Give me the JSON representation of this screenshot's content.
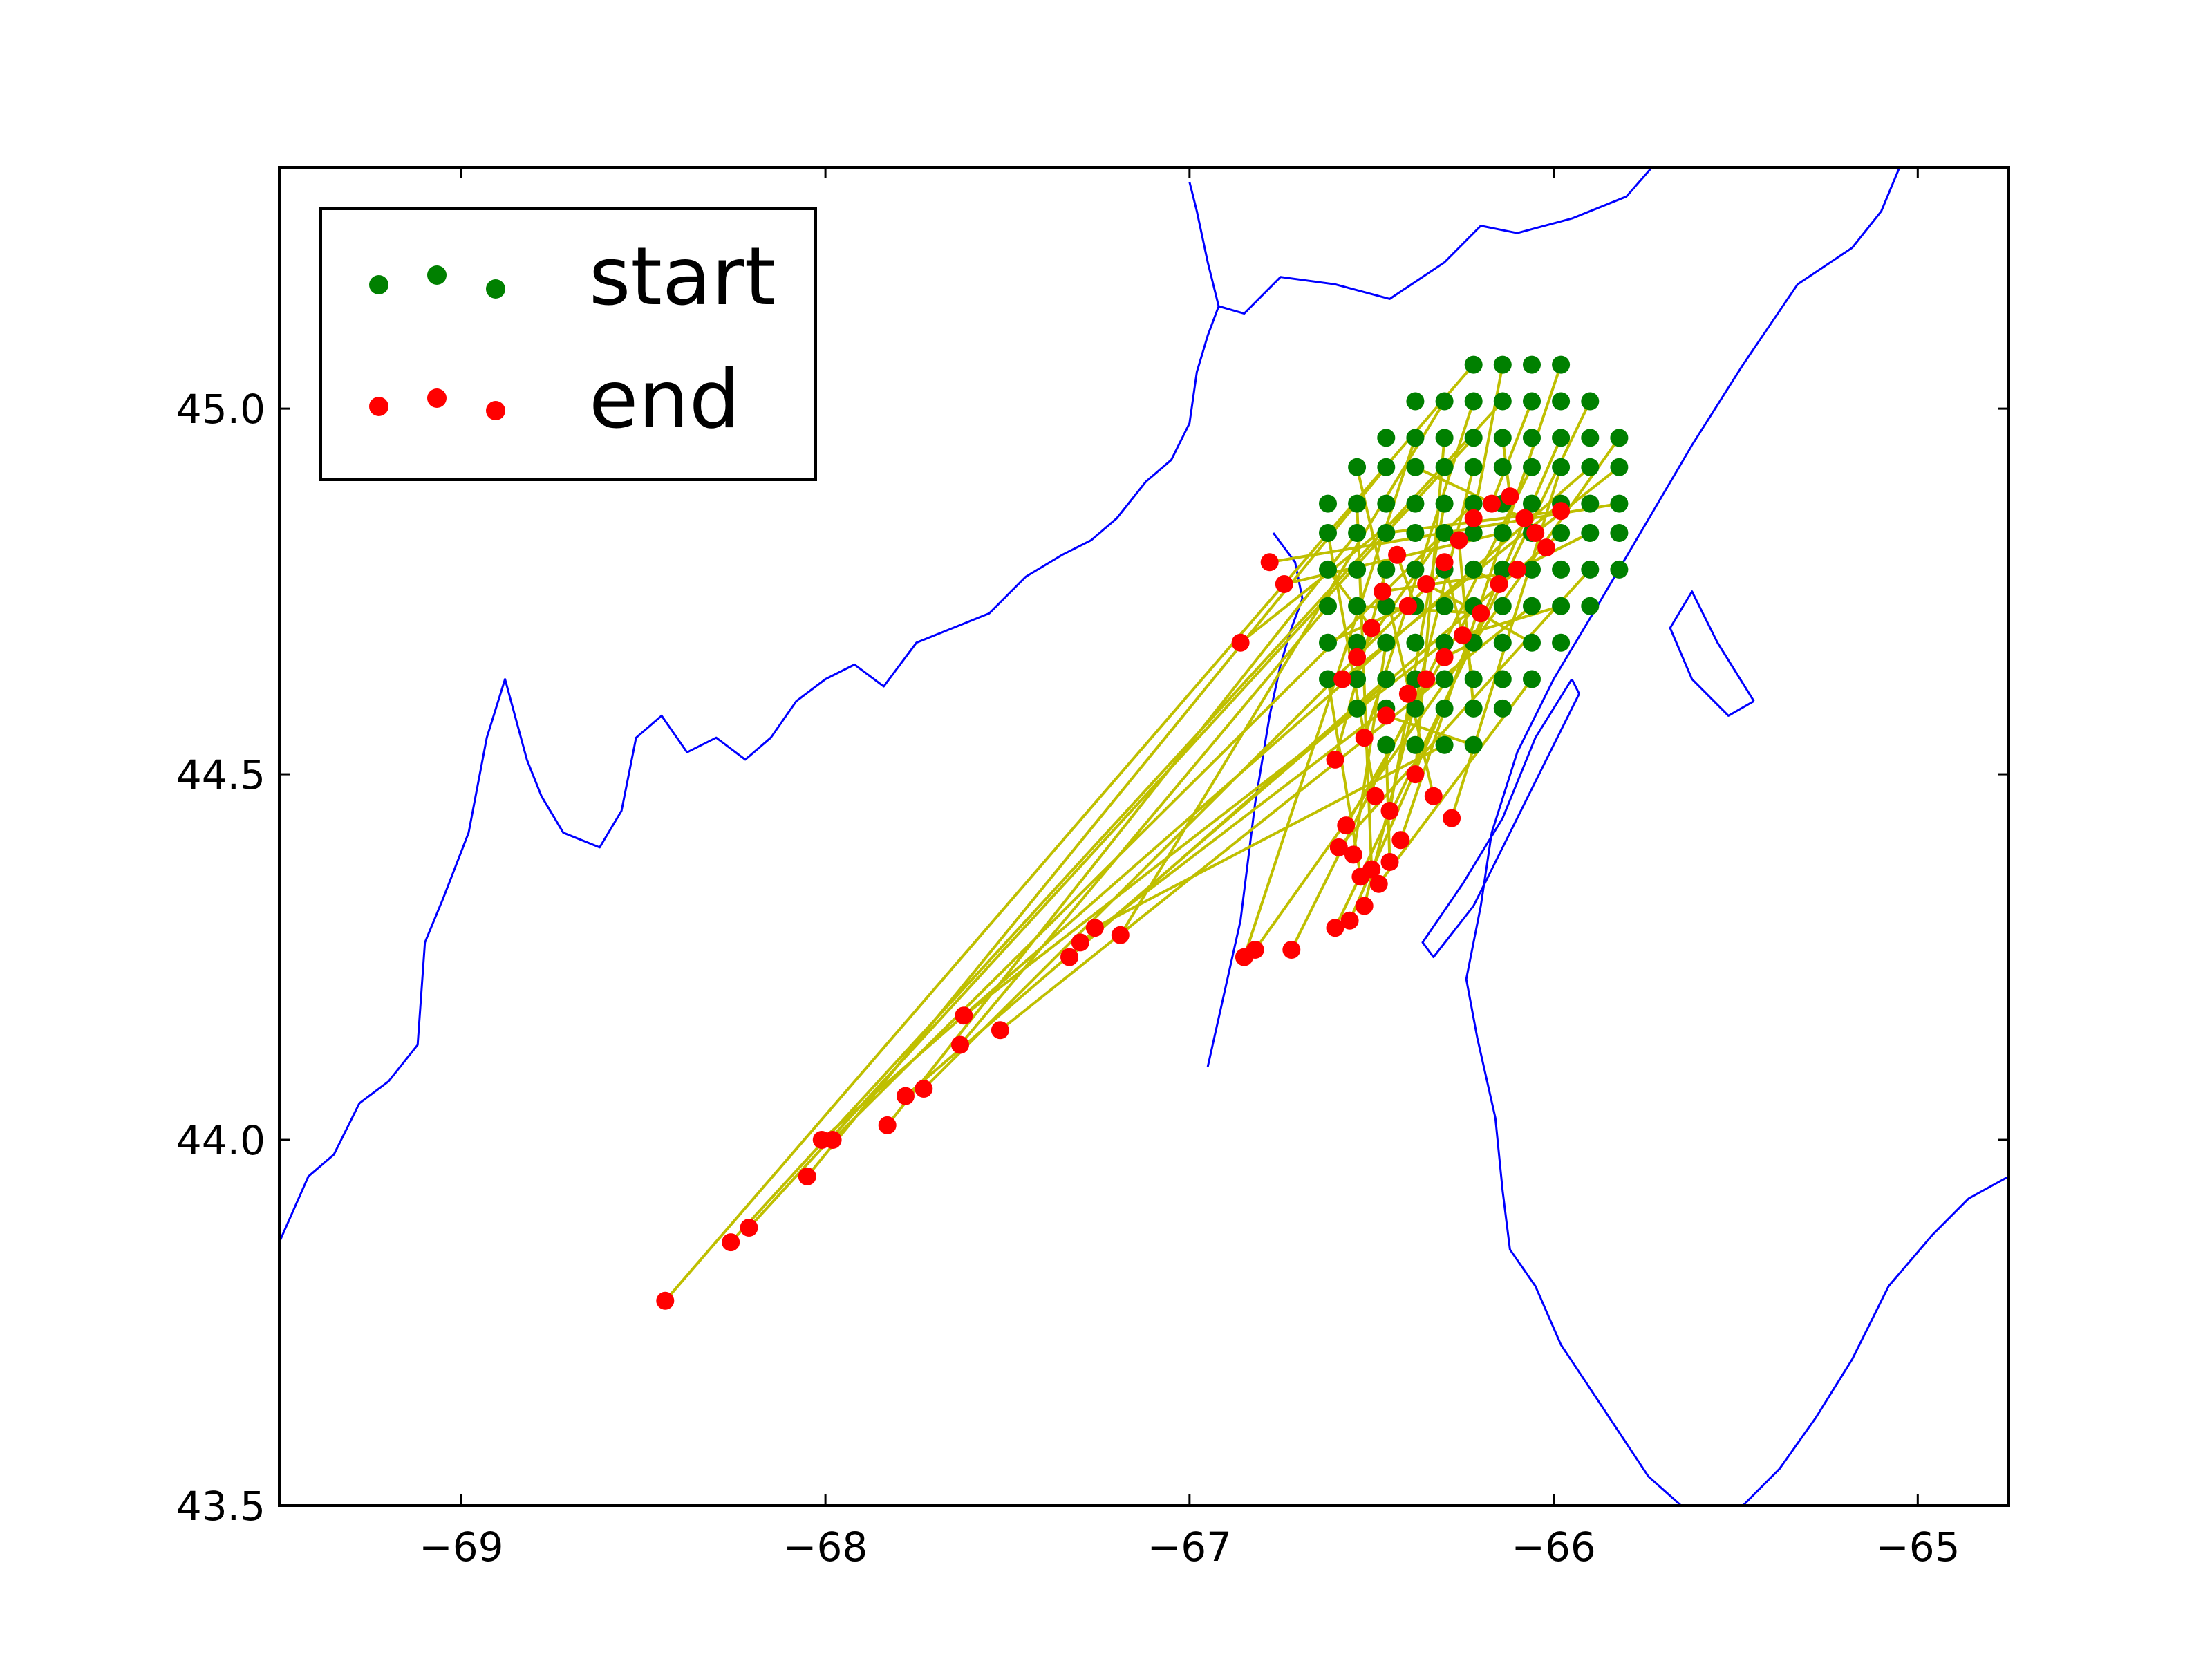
{
  "chart_data": {
    "type": "scatter",
    "title": "",
    "xlabel": "",
    "ylabel": "",
    "xlim": [
      -69.5,
      -64.75
    ],
    "ylim": [
      43.5,
      45.33
    ],
    "xticks": [
      -69,
      -68,
      -67,
      -66,
      -65
    ],
    "yticks": [
      43.5,
      44.0,
      44.5,
      45.0
    ],
    "xtick_labels": [
      "−69",
      "−68",
      "−67",
      "−66",
      "−65"
    ],
    "ytick_labels": [
      "43.5",
      "44.0",
      "44.5",
      "45.0"
    ],
    "grid": false,
    "legend": {
      "placement": "top-left",
      "entries": [
        {
          "label": "start",
          "color": "#008000"
        },
        {
          "label": "end",
          "color": "#ff0000"
        }
      ]
    },
    "colors": {
      "start": "#008000",
      "end": "#ff0000",
      "track": "#bfbf00",
      "coastline": "#0000ff"
    },
    "start_rows": [
      {
        "lat": 45.06,
        "lons": [
          -66.22,
          -66.14,
          -66.06,
          -65.98
        ]
      },
      {
        "lat": 45.01,
        "lons": [
          -66.38,
          -66.3,
          -66.22,
          -66.14,
          -66.06,
          -65.98,
          -65.9
        ]
      },
      {
        "lat": 44.96,
        "lons": [
          -66.46,
          -66.38,
          -66.3,
          -66.22,
          -66.14,
          -66.06,
          -65.98,
          -65.9,
          -65.82
        ]
      },
      {
        "lat": 44.92,
        "lons": [
          -66.54,
          -66.46,
          -66.38,
          -66.3,
          -66.22,
          -66.14,
          -66.06,
          -65.98,
          -65.9,
          -65.82
        ]
      },
      {
        "lat": 44.87,
        "lons": [
          -66.62,
          -66.54,
          -66.46,
          -66.38,
          -66.3,
          -66.22,
          -66.14,
          -66.06,
          -65.98,
          -65.9,
          -65.82
        ]
      },
      {
        "lat": 44.83,
        "lons": [
          -66.62,
          -66.54,
          -66.46,
          -66.38,
          -66.3,
          -66.22,
          -66.14,
          -66.06,
          -65.98,
          -65.9,
          -65.82
        ]
      },
      {
        "lat": 44.78,
        "lons": [
          -66.62,
          -66.54,
          -66.46,
          -66.38,
          -66.3,
          -66.22,
          -66.14,
          -66.06,
          -65.98,
          -65.9,
          -65.82
        ]
      },
      {
        "lat": 44.73,
        "lons": [
          -66.62,
          -66.54,
          -66.46,
          -66.38,
          -66.3,
          -66.22,
          -66.14,
          -66.06,
          -65.98,
          -65.9
        ]
      },
      {
        "lat": 44.68,
        "lons": [
          -66.62,
          -66.54,
          -66.46,
          -66.38,
          -66.3,
          -66.22,
          -66.14,
          -66.06,
          -65.98
        ]
      },
      {
        "lat": 44.63,
        "lons": [
          -66.62,
          -66.54,
          -66.46,
          -66.38,
          -66.3,
          -66.22,
          -66.14,
          -66.06
        ]
      },
      {
        "lat": 44.59,
        "lons": [
          -66.54,
          -66.46,
          -66.38,
          -66.3,
          -66.22,
          -66.14
        ]
      },
      {
        "lat": 44.54,
        "lons": [
          -66.46,
          -66.38,
          -66.3,
          -66.22
        ]
      }
    ],
    "end_points": [
      [
        -68.44,
        43.78
      ],
      [
        -68.26,
        43.86
      ],
      [
        -68.21,
        43.88
      ],
      [
        -68.05,
        43.95
      ],
      [
        -68.01,
        44.0
      ],
      [
        -67.98,
        44.0
      ],
      [
        -67.83,
        44.02
      ],
      [
        -67.78,
        44.06
      ],
      [
        -67.73,
        44.07
      ],
      [
        -67.63,
        44.13
      ],
      [
        -67.52,
        44.15
      ],
      [
        -67.62,
        44.17
      ],
      [
        -67.33,
        44.25
      ],
      [
        -67.3,
        44.27
      ],
      [
        -67.26,
        44.29
      ],
      [
        -67.19,
        44.28
      ],
      [
        -66.85,
        44.25
      ],
      [
        -66.82,
        44.26
      ],
      [
        -66.72,
        44.26
      ],
      [
        -66.86,
        44.68
      ],
      [
        -66.78,
        44.79
      ],
      [
        -66.74,
        44.76
      ],
      [
        -66.6,
        44.52
      ],
      [
        -66.59,
        44.4
      ],
      [
        -66.57,
        44.43
      ],
      [
        -66.55,
        44.39
      ],
      [
        -66.53,
        44.36
      ],
      [
        -66.48,
        44.35
      ],
      [
        -66.45,
        44.38
      ],
      [
        -66.42,
        44.41
      ],
      [
        -66.6,
        44.29
      ],
      [
        -66.56,
        44.3
      ],
      [
        -66.52,
        44.32
      ],
      [
        -66.5,
        44.37
      ],
      [
        -66.58,
        44.63
      ],
      [
        -66.54,
        44.66
      ],
      [
        -66.5,
        44.7
      ],
      [
        -66.47,
        44.75
      ],
      [
        -66.43,
        44.8
      ],
      [
        -66.4,
        44.73
      ],
      [
        -66.35,
        44.76
      ],
      [
        -66.3,
        44.79
      ],
      [
        -66.26,
        44.82
      ],
      [
        -66.22,
        44.85
      ],
      [
        -66.17,
        44.87
      ],
      [
        -66.12,
        44.88
      ],
      [
        -66.08,
        44.85
      ],
      [
        -66.05,
        44.83
      ],
      [
        -66.02,
        44.81
      ],
      [
        -65.98,
        44.86
      ],
      [
        -66.1,
        44.78
      ],
      [
        -66.15,
        44.76
      ],
      [
        -66.2,
        44.72
      ],
      [
        -66.25,
        44.69
      ],
      [
        -66.3,
        44.66
      ],
      [
        -66.35,
        44.63
      ],
      [
        -66.4,
        44.61
      ],
      [
        -66.46,
        44.58
      ],
      [
        -66.52,
        44.55
      ],
      [
        -66.38,
        44.5
      ],
      [
        -66.33,
        44.47
      ],
      [
        -66.28,
        44.44
      ],
      [
        -66.45,
        44.45
      ],
      [
        -66.49,
        44.47
      ]
    ],
    "coastlines": [
      [
        [
          -69.5,
          43.86
        ],
        [
          -69.42,
          43.95
        ],
        [
          -69.35,
          43.98
        ],
        [
          -69.28,
          44.05
        ],
        [
          -69.2,
          44.08
        ],
        [
          -69.12,
          44.13
        ],
        [
          -69.1,
          44.27
        ],
        [
          -69.05,
          44.33
        ],
        [
          -68.98,
          44.42
        ],
        [
          -68.93,
          44.55
        ],
        [
          -68.88,
          44.63
        ],
        [
          -68.82,
          44.52
        ],
        [
          -68.78,
          44.47
        ],
        [
          -68.72,
          44.42
        ],
        [
          -68.62,
          44.4
        ],
        [
          -68.56,
          44.45
        ],
        [
          -68.52,
          44.55
        ],
        [
          -68.45,
          44.58
        ],
        [
          -68.38,
          44.53
        ],
        [
          -68.3,
          44.55
        ],
        [
          -68.22,
          44.52
        ],
        [
          -68.15,
          44.55
        ],
        [
          -68.08,
          44.6
        ],
        [
          -68.0,
          44.63
        ],
        [
          -67.92,
          44.65
        ],
        [
          -67.84,
          44.62
        ],
        [
          -67.75,
          44.68
        ],
        [
          -67.65,
          44.7
        ],
        [
          -67.55,
          44.72
        ],
        [
          -67.45,
          44.77
        ],
        [
          -67.35,
          44.8
        ],
        [
          -67.27,
          44.82
        ],
        [
          -67.2,
          44.85
        ],
        [
          -67.12,
          44.9
        ],
        [
          -67.05,
          44.93
        ],
        [
          -67.0,
          44.98
        ],
        [
          -66.98,
          45.05
        ],
        [
          -66.95,
          45.1
        ],
        [
          -66.92,
          45.14
        ],
        [
          -66.95,
          45.2
        ],
        [
          -66.98,
          45.27
        ],
        [
          -67.0,
          45.31
        ]
      ],
      [
        [
          -66.92,
          45.14
        ],
        [
          -66.85,
          45.13
        ],
        [
          -66.75,
          45.18
        ],
        [
          -66.6,
          45.17
        ],
        [
          -66.45,
          45.15
        ],
        [
          -66.3,
          45.2
        ],
        [
          -66.2,
          45.25
        ],
        [
          -66.1,
          45.24
        ],
        [
          -65.95,
          45.26
        ],
        [
          -65.8,
          45.29
        ],
        [
          -65.73,
          45.33
        ]
      ],
      [
        [
          -66.95,
          44.1
        ],
        [
          -66.86,
          44.3
        ],
        [
          -66.82,
          44.46
        ],
        [
          -66.78,
          44.58
        ],
        [
          -66.75,
          44.65
        ],
        [
          -66.72,
          44.7
        ],
        [
          -66.69,
          44.74
        ],
        [
          -66.71,
          44.79
        ],
        [
          -66.77,
          44.83
        ]
      ],
      [
        [
          -65.05,
          45.33
        ],
        [
          -65.1,
          45.27
        ],
        [
          -65.18,
          45.22
        ],
        [
          -65.33,
          45.17
        ],
        [
          -65.48,
          45.06
        ],
        [
          -65.62,
          44.95
        ],
        [
          -65.75,
          44.84
        ],
        [
          -65.88,
          44.73
        ],
        [
          -66.0,
          44.63
        ],
        [
          -66.1,
          44.53
        ],
        [
          -66.17,
          44.42
        ],
        [
          -66.2,
          44.32
        ],
        [
          -66.24,
          44.22
        ],
        [
          -66.21,
          44.14
        ],
        [
          -66.16,
          44.03
        ],
        [
          -66.14,
          43.93
        ],
        [
          -66.12,
          43.85
        ],
        [
          -66.05,
          43.8
        ],
        [
          -65.98,
          43.72
        ],
        [
          -65.9,
          43.66
        ],
        [
          -65.82,
          43.6
        ],
        [
          -65.74,
          43.54
        ],
        [
          -65.65,
          43.5
        ]
      ],
      [
        [
          -65.48,
          43.5
        ],
        [
          -65.38,
          43.55
        ],
        [
          -65.28,
          43.62
        ],
        [
          -65.18,
          43.7
        ],
        [
          -65.08,
          43.8
        ],
        [
          -64.96,
          43.87
        ],
        [
          -64.86,
          43.92
        ],
        [
          -64.75,
          43.95
        ]
      ],
      [
        [
          -65.95,
          44.63
        ],
        [
          -66.05,
          44.55
        ],
        [
          -66.14,
          44.44
        ],
        [
          -66.25,
          44.35
        ],
        [
          -66.36,
          44.27
        ],
        [
          -66.33,
          44.25
        ],
        [
          -66.22,
          44.32
        ],
        [
          -66.12,
          44.42
        ],
        [
          -66.02,
          44.52
        ],
        [
          -65.93,
          44.61
        ],
        [
          -65.95,
          44.63
        ]
      ],
      [
        [
          -65.45,
          44.6
        ],
        [
          -65.55,
          44.68
        ],
        [
          -65.62,
          44.75
        ],
        [
          -65.68,
          44.7
        ],
        [
          -65.62,
          44.63
        ],
        [
          -65.52,
          44.58
        ],
        [
          -65.45,
          44.6
        ]
      ]
    ]
  }
}
